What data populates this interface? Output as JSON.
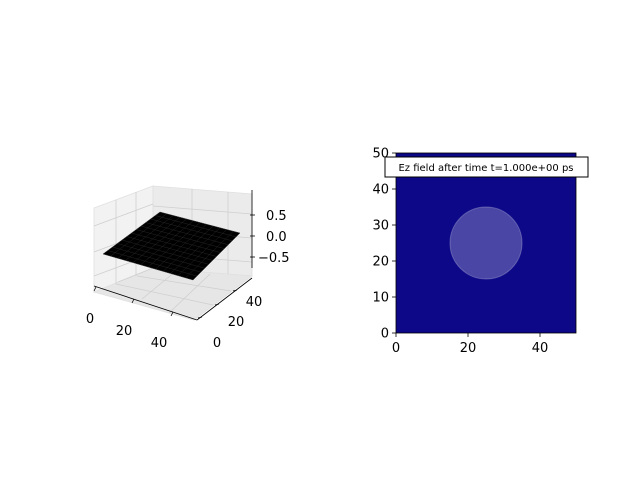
{
  "chart_data": [
    {
      "type": "surface3d",
      "x_ticks": [
        "0",
        "20",
        "40"
      ],
      "y_ticks": [
        "0",
        "20",
        "40"
      ],
      "z_ticks": [
        "0.5",
        "0.0",
        "−0.5"
      ],
      "xlim": [
        0,
        50
      ],
      "ylim": [
        0,
        50
      ],
      "zlim": [
        -0.75,
        0.75
      ],
      "z_value": 0.0,
      "surface_color": "#000000",
      "grid": true
    },
    {
      "type": "heatmap",
      "annotation": "Ez field after time t=1.000e+00 ps",
      "x_ticks": [
        "0",
        "20",
        "40"
      ],
      "y_ticks": [
        "0",
        "10",
        "20",
        "30",
        "40",
        "50"
      ],
      "xlim": [
        0,
        50
      ],
      "ylim": [
        0,
        50
      ],
      "field_value": 0.0,
      "field_color": "#0d0887",
      "circle": {
        "cx": 25,
        "cy": 25,
        "r": 10,
        "color": "#ffffff",
        "alpha": 0.25
      }
    }
  ]
}
